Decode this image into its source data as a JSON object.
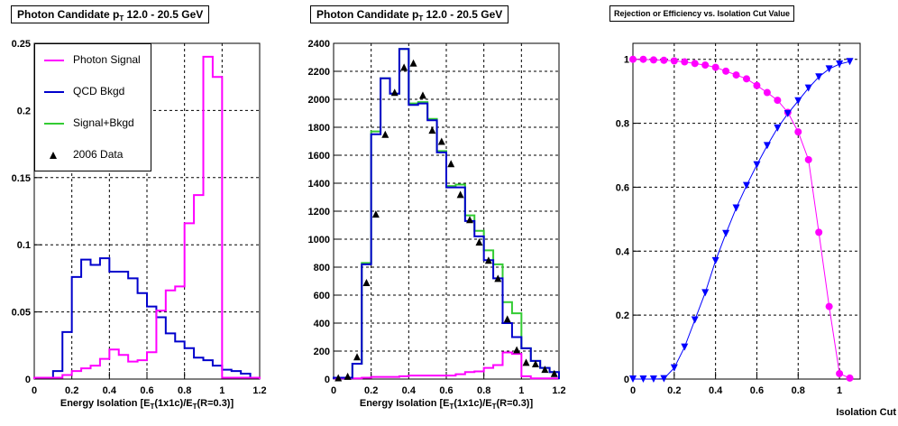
{
  "chart_data": [
    {
      "type": "line",
      "title": "Photon Candidate p",
      "title_sub": "T",
      "title_rest": " 12.0 - 20.5 GeV",
      "xlabel": "Energy Isolation [E",
      "xlabel_full": "Energy Isolation [E_T(1x1c)/E_T(R=0.3)]",
      "xlim": [
        0,
        1.2
      ],
      "ylim": [
        0,
        0.25
      ],
      "xticks": [
        0,
        0.2,
        0.4,
        0.6,
        0.8,
        1,
        1.2
      ],
      "yticks": [
        0,
        0.05,
        0.1,
        0.15,
        0.2,
        0.25
      ],
      "grid": true,
      "legend_position": "top-left",
      "legend": [
        {
          "label": "Photon Signal",
          "color": "#ff00ff",
          "marker": "line"
        },
        {
          "label": "QCD Bkgd",
          "color": "#0000cc",
          "marker": "line"
        },
        {
          "label": "Signal+Bkgd",
          "color": "#33cc33",
          "marker": "line"
        },
        {
          "label": "2006 Data",
          "color": "#000000",
          "marker": "triangle"
        }
      ],
      "bin_edges": [
        0,
        0.05,
        0.1,
        0.15,
        0.2,
        0.25,
        0.3,
        0.35,
        0.4,
        0.45,
        0.5,
        0.55,
        0.6,
        0.65,
        0.7,
        0.75,
        0.8,
        0.85,
        0.9,
        0.95,
        1.0,
        1.05,
        1.1,
        1.15,
        1.2
      ],
      "series": [
        {
          "name": "Photon Signal",
          "color": "#ff00ff",
          "values": [
            0.001,
            0.001,
            0.001,
            0.003,
            0.006,
            0.008,
            0.01,
            0.015,
            0.022,
            0.018,
            0.013,
            0.014,
            0.02,
            0.051,
            0.066,
            0.069,
            0.116,
            0.137,
            0.24,
            0.225,
            0.001,
            0.001,
            0.001,
            0.001
          ]
        },
        {
          "name": "QCD Bkgd",
          "color": "#0000cc",
          "values": [
            0.001,
            0.001,
            0.006,
            0.035,
            0.076,
            0.089,
            0.085,
            0.09,
            0.08,
            0.08,
            0.075,
            0.064,
            0.054,
            0.046,
            0.034,
            0.028,
            0.023,
            0.016,
            0.014,
            0.01,
            0.007,
            0.006,
            0.004,
            0.001
          ]
        }
      ]
    },
    {
      "type": "line",
      "title": "Photon Candidate p",
      "title_sub": "T",
      "title_rest": " 12.0 - 20.5 GeV",
      "xlabel": "Energy Isolation [E",
      "xlabel_full": "Energy Isolation [E_T(1x1c)/E_T(R=0.3)]",
      "xlim": [
        0,
        1.2
      ],
      "ylim": [
        0,
        2400
      ],
      "xticks": [
        0,
        0.2,
        0.4,
        0.6,
        0.8,
        1,
        1.2
      ],
      "yticks": [
        0,
        200,
        400,
        600,
        800,
        1000,
        1200,
        1400,
        1600,
        1800,
        2000,
        2200,
        2400
      ],
      "grid": true,
      "bin_edges": [
        0,
        0.05,
        0.1,
        0.15,
        0.2,
        0.25,
        0.3,
        0.35,
        0.4,
        0.45,
        0.5,
        0.55,
        0.6,
        0.65,
        0.7,
        0.75,
        0.8,
        0.85,
        0.9,
        0.95,
        1.0,
        1.05,
        1.1,
        1.15,
        1.2
      ],
      "series": [
        {
          "name": "Photon Signal",
          "color": "#ff00ff",
          "values": [
            5,
            5,
            5,
            10,
            15,
            15,
            15,
            20,
            25,
            25,
            25,
            25,
            25,
            35,
            50,
            55,
            80,
            100,
            190,
            180,
            20,
            5,
            5,
            5
          ]
        },
        {
          "name": "Signal+Bkgd",
          "color": "#33cc33",
          "values": [
            10,
            10,
            110,
            830,
            1770,
            2150,
            2040,
            2360,
            1970,
            1980,
            1860,
            1630,
            1380,
            1390,
            1170,
            1060,
            920,
            820,
            550,
            470,
            220,
            130,
            80,
            50
          ]
        },
        {
          "name": "QCD Bkgd",
          "color": "#0000cc",
          "values": [
            10,
            10,
            110,
            820,
            1750,
            2150,
            2040,
            2360,
            1960,
            1970,
            1850,
            1620,
            1370,
            1370,
            1130,
            1020,
            850,
            720,
            400,
            300,
            220,
            130,
            80,
            50
          ]
        },
        {
          "name": "2006 Data",
          "color": "#000000",
          "marker": "triangle",
          "x": [
            0.025,
            0.075,
            0.125,
            0.175,
            0.225,
            0.275,
            0.325,
            0.375,
            0.425,
            0.475,
            0.525,
            0.575,
            0.625,
            0.675,
            0.725,
            0.775,
            0.825,
            0.875,
            0.925,
            0.975,
            1.025,
            1.075,
            1.125,
            1.175
          ],
          "values": [
            10,
            20,
            160,
            690,
            1180,
            1750,
            2050,
            2230,
            2260,
            2030,
            1780,
            1700,
            1540,
            1320,
            1140,
            980,
            850,
            720,
            430,
            210,
            120,
            110,
            70,
            40
          ]
        }
      ]
    },
    {
      "type": "scatter",
      "title": "Rejection or Efficiency vs. Isolation Cut Value",
      "xlabel": "Isolation Cut",
      "xlim": [
        0,
        1.1
      ],
      "ylim": [
        0,
        1.05
      ],
      "xticks": [
        0,
        0.2,
        0.4,
        0.6,
        0.8,
        1
      ],
      "yticks": [
        0,
        0.2,
        0.4,
        0.6,
        0.8,
        1
      ],
      "grid": true,
      "series": [
        {
          "name": "",
          "color": "#ff00ff",
          "marker": "circle",
          "x": [
            0,
            0.05,
            0.1,
            0.15,
            0.2,
            0.25,
            0.3,
            0.35,
            0.4,
            0.45,
            0.5,
            0.55,
            0.6,
            0.65,
            0.7,
            0.75,
            0.8,
            0.85,
            0.9,
            0.95,
            1.0,
            1.05
          ],
          "values": [
            1.0,
            1.0,
            0.998,
            0.997,
            0.995,
            0.992,
            0.987,
            0.982,
            0.975,
            0.963,
            0.951,
            0.939,
            0.918,
            0.896,
            0.872,
            0.834,
            0.773,
            0.686,
            0.459,
            0.227,
            0.017,
            0.003
          ]
        },
        {
          "name": "",
          "color": "#0000ff",
          "marker": "triangle-down",
          "x": [
            0,
            0.05,
            0.1,
            0.15,
            0.2,
            0.25,
            0.3,
            0.35,
            0.4,
            0.45,
            0.5,
            0.55,
            0.6,
            0.65,
            0.7,
            0.75,
            0.8,
            0.85,
            0.9,
            0.95,
            1.0,
            1.05
          ],
          "values": [
            0,
            0,
            0,
            0.001,
            0.035,
            0.1,
            0.185,
            0.27,
            0.37,
            0.455,
            0.535,
            0.605,
            0.67,
            0.73,
            0.785,
            0.83,
            0.87,
            0.91,
            0.945,
            0.97,
            0.985,
            0.993
          ]
        }
      ]
    }
  ]
}
